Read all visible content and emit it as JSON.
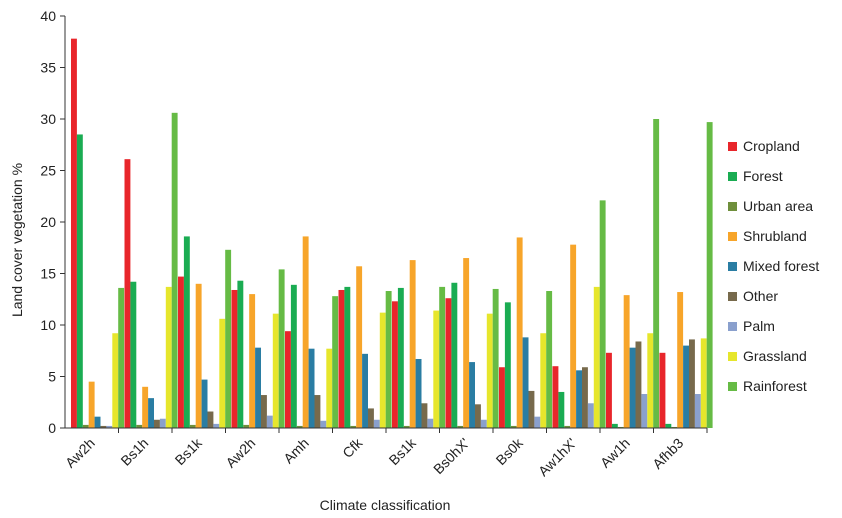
{
  "chart_data": {
    "type": "bar",
    "title": "",
    "xlabel": "Climate classification",
    "ylabel": "Land cover vegetation %",
    "ylim": [
      0,
      40
    ],
    "yticks": [
      0,
      5,
      10,
      15,
      20,
      25,
      30,
      35,
      40
    ],
    "grid": false,
    "legend_position": "right",
    "categories": [
      "Aw2h",
      "Bs1h",
      "Bs1k",
      "Aw2h",
      "Amh",
      "Cfk",
      "Bs1k",
      "Bs0hX'",
      "Bs0k",
      "Aw1hX'",
      "Aw1h",
      "Afhb3"
    ],
    "series": [
      {
        "name": "Cropland",
        "color": "#e8262b",
        "values": [
          37.8,
          26.1,
          14.7,
          13.4,
          9.4,
          13.4,
          12.3,
          12.6,
          5.9,
          6.0,
          7.3,
          7.3
        ]
      },
      {
        "name": "Forest",
        "color": "#1aac52",
        "values": [
          28.5,
          14.2,
          18.6,
          14.3,
          13.9,
          13.7,
          13.6,
          14.1,
          12.2,
          3.5,
          0.4,
          0.4
        ]
      },
      {
        "name": "Urban area",
        "color": "#6f8f3c",
        "values": [
          0.3,
          0.3,
          0.3,
          0.3,
          0.2,
          0.2,
          0.2,
          0.2,
          0.2,
          0.2,
          0.1,
          0.1
        ]
      },
      {
        "name": "Shrubland",
        "color": "#f7a52a",
        "values": [
          4.5,
          4.0,
          14.0,
          13.0,
          18.6,
          15.7,
          16.3,
          16.5,
          18.5,
          17.8,
          12.9,
          13.2
        ]
      },
      {
        "name": "Mixed forest",
        "color": "#2a7da3",
        "values": [
          1.1,
          2.9,
          4.7,
          7.8,
          7.7,
          7.2,
          6.7,
          6.4,
          8.8,
          5.6,
          7.8,
          8.0
        ]
      },
      {
        "name": "Other",
        "color": "#776a4c",
        "values": [
          0.2,
          0.8,
          1.6,
          3.2,
          3.2,
          1.9,
          2.4,
          2.3,
          3.6,
          5.9,
          8.4,
          8.6
        ]
      },
      {
        "name": "Palm",
        "color": "#8aa0cd",
        "values": [
          0.2,
          0.9,
          0.4,
          1.2,
          0.7,
          0.8,
          0.9,
          0.8,
          1.1,
          2.4,
          3.3,
          3.3
        ]
      },
      {
        "name": "Grassland",
        "color": "#e6e62c",
        "values": [
          9.2,
          13.7,
          10.6,
          11.1,
          7.7,
          11.2,
          11.4,
          11.1,
          9.2,
          13.7,
          9.2,
          8.7
        ]
      },
      {
        "name": "Rainforest",
        "color": "#66bb45",
        "values": [
          13.6,
          30.6,
          17.3,
          15.4,
          12.8,
          13.3,
          13.7,
          13.5,
          13.3,
          22.1,
          30.0,
          29.7
        ]
      }
    ]
  }
}
